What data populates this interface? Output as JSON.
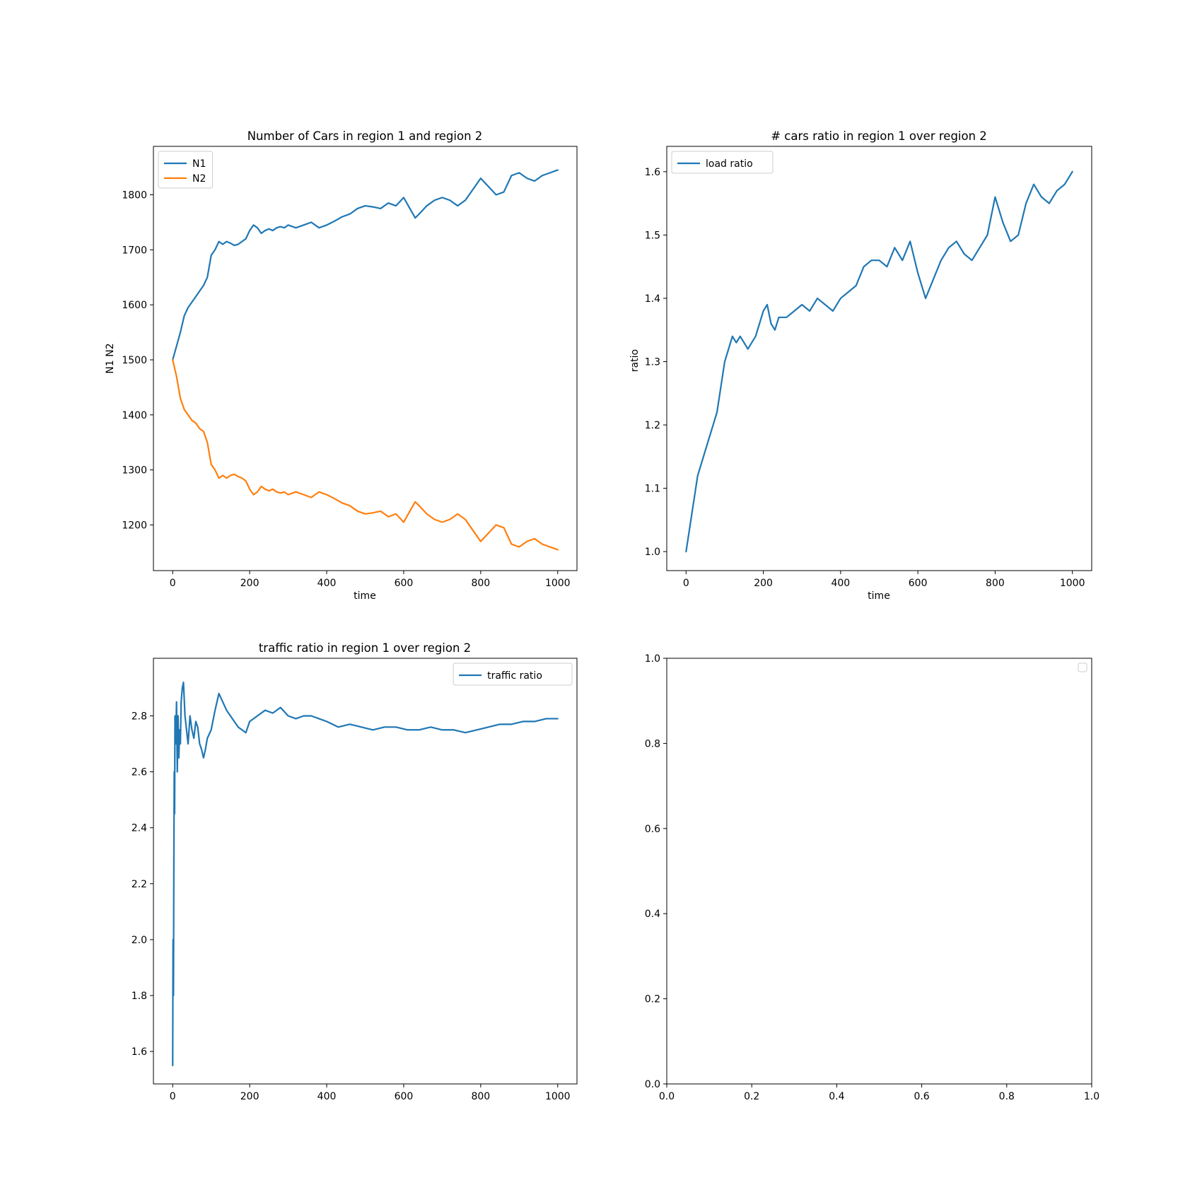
{
  "chart_data": [
    {
      "type": "line",
      "title": "Number of Cars in region 1 and region 2",
      "xlabel": "time",
      "ylabel": "N1 N2",
      "xlim": [
        -50,
        1050
      ],
      "ylim": [
        1117,
        1888
      ],
      "xticks": [
        0,
        200,
        400,
        600,
        800,
        1000
      ],
      "yticks": [
        1200,
        1300,
        1400,
        1500,
        1600,
        1700,
        1800
      ],
      "grid": false,
      "legend": "upper-left",
      "series": [
        {
          "name": "N1",
          "color": "#1f77b4",
          "x": [
            0,
            10,
            20,
            30,
            40,
            50,
            60,
            70,
            80,
            90,
            100,
            110,
            120,
            130,
            140,
            150,
            160,
            170,
            180,
            190,
            200,
            210,
            220,
            230,
            240,
            250,
            260,
            270,
            280,
            290,
            300,
            320,
            340,
            360,
            380,
            400,
            420,
            440,
            460,
            480,
            500,
            520,
            540,
            560,
            580,
            600,
            620,
            630,
            640,
            660,
            680,
            700,
            720,
            740,
            760,
            780,
            800,
            820,
            840,
            860,
            880,
            900,
            920,
            940,
            960,
            980,
            1000
          ],
          "y": [
            1500,
            1525,
            1550,
            1580,
            1595,
            1605,
            1615,
            1625,
            1635,
            1650,
            1690,
            1700,
            1715,
            1710,
            1715,
            1712,
            1708,
            1710,
            1715,
            1720,
            1735,
            1745,
            1740,
            1730,
            1735,
            1738,
            1735,
            1740,
            1742,
            1740,
            1745,
            1740,
            1745,
            1750,
            1740,
            1745,
            1752,
            1760,
            1765,
            1775,
            1780,
            1778,
            1775,
            1785,
            1780,
            1795,
            1770,
            1758,
            1765,
            1780,
            1790,
            1795,
            1790,
            1780,
            1790,
            1810,
            1830,
            1815,
            1800,
            1805,
            1835,
            1840,
            1830,
            1825,
            1835,
            1840,
            1845
          ]
        },
        {
          "name": "N2",
          "color": "#ff7f0e",
          "x": [
            0,
            10,
            20,
            30,
            40,
            50,
            60,
            70,
            80,
            90,
            100,
            110,
            120,
            130,
            140,
            150,
            160,
            170,
            180,
            190,
            200,
            210,
            220,
            230,
            240,
            250,
            260,
            270,
            280,
            290,
            300,
            320,
            340,
            360,
            380,
            400,
            420,
            440,
            460,
            480,
            500,
            520,
            540,
            560,
            580,
            600,
            620,
            630,
            640,
            660,
            680,
            700,
            720,
            740,
            760,
            780,
            800,
            820,
            840,
            860,
            880,
            900,
            920,
            940,
            960,
            980,
            1000
          ],
          "y": [
            1500,
            1470,
            1430,
            1410,
            1400,
            1390,
            1385,
            1375,
            1370,
            1350,
            1310,
            1300,
            1285,
            1290,
            1285,
            1290,
            1292,
            1288,
            1285,
            1280,
            1265,
            1255,
            1260,
            1270,
            1265,
            1262,
            1265,
            1260,
            1258,
            1260,
            1255,
            1260,
            1255,
            1250,
            1260,
            1255,
            1248,
            1240,
            1235,
            1225,
            1220,
            1222,
            1225,
            1215,
            1220,
            1205,
            1230,
            1242,
            1235,
            1220,
            1210,
            1205,
            1210,
            1220,
            1210,
            1190,
            1170,
            1185,
            1200,
            1195,
            1165,
            1160,
            1170,
            1175,
            1165,
            1160,
            1155
          ]
        }
      ]
    },
    {
      "type": "line",
      "title": "# cars ratio in region 1 over region 2",
      "xlabel": "time",
      "ylabel": "ratio",
      "xlim": [
        -50,
        1050
      ],
      "ylim": [
        0.97,
        1.64
      ],
      "xticks": [
        0,
        200,
        400,
        600,
        800,
        1000
      ],
      "yticks": [
        1.0,
        1.1,
        1.2,
        1.3,
        1.4,
        1.5,
        1.6
      ],
      "grid": false,
      "legend": "upper-left",
      "series": [
        {
          "name": "load ratio",
          "color": "#1f77b4",
          "x": [
            0,
            10,
            20,
            30,
            40,
            50,
            60,
            70,
            80,
            90,
            100,
            110,
            120,
            130,
            140,
            150,
            160,
            170,
            180,
            190,
            200,
            210,
            220,
            230,
            240,
            260,
            280,
            300,
            320,
            340,
            360,
            380,
            400,
            420,
            440,
            460,
            480,
            500,
            520,
            540,
            560,
            580,
            600,
            620,
            640,
            660,
            680,
            700,
            720,
            740,
            760,
            780,
            800,
            820,
            840,
            860,
            880,
            900,
            920,
            940,
            960,
            980,
            1000
          ],
          "y": [
            1.0,
            1.04,
            1.08,
            1.12,
            1.14,
            1.16,
            1.18,
            1.2,
            1.22,
            1.26,
            1.3,
            1.32,
            1.34,
            1.33,
            1.34,
            1.33,
            1.32,
            1.33,
            1.34,
            1.36,
            1.38,
            1.39,
            1.36,
            1.35,
            1.37,
            1.37,
            1.38,
            1.39,
            1.38,
            1.4,
            1.39,
            1.38,
            1.4,
            1.41,
            1.42,
            1.45,
            1.46,
            1.46,
            1.45,
            1.48,
            1.46,
            1.49,
            1.44,
            1.4,
            1.43,
            1.46,
            1.48,
            1.49,
            1.47,
            1.46,
            1.48,
            1.5,
            1.56,
            1.52,
            1.49,
            1.5,
            1.55,
            1.58,
            1.56,
            1.55,
            1.57,
            1.58,
            1.6
          ]
        }
      ]
    },
    {
      "type": "line",
      "title": "traffic ratio in region 1 over region 2",
      "xlabel": "",
      "ylabel": "",
      "xlim": [
        -50,
        1050
      ],
      "ylim": [
        1.484,
        3.006
      ],
      "xticks": [
        0,
        200,
        400,
        600,
        800,
        1000
      ],
      "yticks": [
        1.6,
        1.8,
        2.0,
        2.2,
        2.4,
        2.6,
        2.8
      ],
      "grid": false,
      "legend": "upper-right",
      "series": [
        {
          "name": "traffic ratio",
          "color": "#1f77b4",
          "x": [
            0,
            1,
            2,
            3,
            4,
            5,
            6,
            8,
            10,
            12,
            14,
            16,
            18,
            20,
            22,
            25,
            28,
            32,
            36,
            40,
            45,
            50,
            55,
            60,
            65,
            70,
            75,
            80,
            85,
            90,
            100,
            110,
            120,
            130,
            140,
            150,
            160,
            170,
            180,
            190,
            200,
            220,
            240,
            260,
            280,
            300,
            320,
            340,
            360,
            380,
            400,
            430,
            460,
            490,
            520,
            550,
            580,
            610,
            640,
            670,
            700,
            730,
            760,
            790,
            820,
            850,
            880,
            910,
            940,
            970,
            1000
          ],
          "y": [
            1.55,
            2.0,
            1.8,
            2.25,
            2.6,
            2.45,
            2.8,
            2.7,
            2.85,
            2.6,
            2.8,
            2.65,
            2.75,
            2.7,
            2.85,
            2.9,
            2.92,
            2.8,
            2.75,
            2.7,
            2.8,
            2.75,
            2.72,
            2.78,
            2.76,
            2.7,
            2.68,
            2.65,
            2.68,
            2.72,
            2.75,
            2.82,
            2.88,
            2.85,
            2.82,
            2.8,
            2.78,
            2.76,
            2.75,
            2.74,
            2.78,
            2.8,
            2.82,
            2.81,
            2.83,
            2.8,
            2.79,
            2.8,
            2.8,
            2.79,
            2.78,
            2.76,
            2.77,
            2.76,
            2.75,
            2.76,
            2.76,
            2.75,
            2.75,
            2.76,
            2.75,
            2.75,
            2.74,
            2.75,
            2.76,
            2.77,
            2.77,
            2.78,
            2.78,
            2.79,
            2.79
          ]
        }
      ]
    },
    {
      "type": "line",
      "title": "",
      "xlabel": "",
      "ylabel": "",
      "xlim": [
        0.0,
        1.0
      ],
      "ylim": [
        0.0,
        1.0
      ],
      "xticks": [
        0.0,
        0.2,
        0.4,
        0.6,
        0.8,
        1.0
      ],
      "yticks": [
        0.0,
        0.2,
        0.4,
        0.6,
        0.8,
        1.0
      ],
      "grid": false,
      "legend": "upper-right-empty",
      "series": []
    }
  ]
}
